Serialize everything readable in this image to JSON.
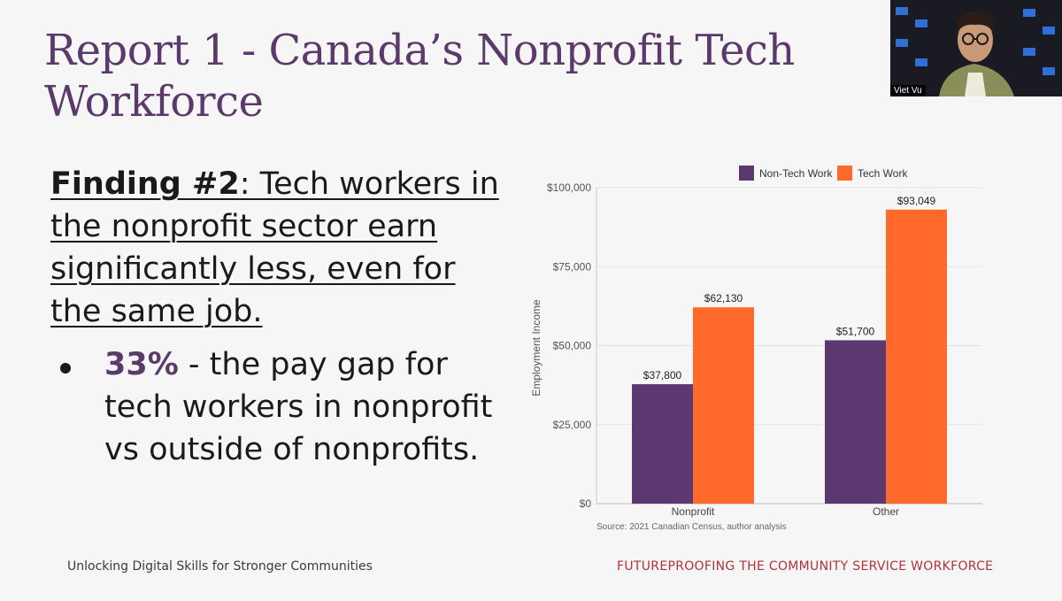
{
  "slide": {
    "title": "Report 1 - Canada’s Nonprofit Tech Workforce",
    "finding_label": "Finding #2",
    "finding_text": ": Tech workers in the nonprofit sector earn significantly less, even for the same job.",
    "bullet_highlight": "33%",
    "bullet_text": " - the pay gap for tech workers in nonprofit vs outside of nonprofits.",
    "footer_left": "Unlocking Digital Skills for Stronger Communities",
    "footer_right": "FUTUREPROOFING THE COMMUNITY SERVICE WORKFORCE"
  },
  "video": {
    "participant_name": "Viet Vu"
  },
  "colors": {
    "title": "#5b3a6b",
    "non_tech": "#5c3870",
    "tech": "#ff6a2b",
    "footer_right": "#b0323a"
  },
  "chart_data": {
    "type": "bar",
    "categories": [
      "Nonprofit",
      "Other"
    ],
    "series": [
      {
        "name": "Non-Tech Work",
        "values": [
          37800,
          51700
        ],
        "labels": [
          "$37,800",
          "$51,700"
        ]
      },
      {
        "name": "Tech Work",
        "values": [
          62130,
          93049
        ],
        "labels": [
          "$62,130",
          "$93,049"
        ]
      }
    ],
    "ylabel": "Employment Income",
    "ylim": [
      0,
      100000
    ],
    "yticks": [
      0,
      25000,
      50000,
      75000,
      100000
    ],
    "ytick_labels": [
      "$0",
      "$25,000",
      "$50,000",
      "$75,000",
      "$100,000"
    ],
    "legend": [
      "Non-Tech Work",
      "Tech Work"
    ],
    "legend_position": "top",
    "source": "Source: 2021 Canadian Census, author analysis",
    "grid": true
  }
}
